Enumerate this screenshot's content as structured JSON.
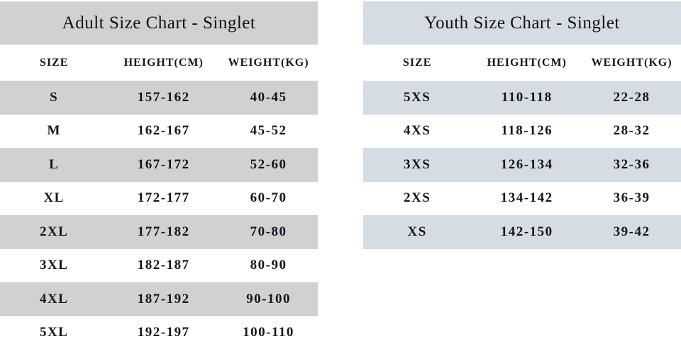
{
  "page": {
    "background_color": "#ffffff",
    "text_color": "#14141c"
  },
  "tables": [
    {
      "id": "adult",
      "title": "Adult Size Chart - Singlet",
      "accent_color": "#d1d1d1",
      "columns": [
        "SIZE",
        "HEIGHT(CM)",
        "WEIGHT(KG)"
      ],
      "rows": [
        [
          "S",
          "157-162",
          "40-45"
        ],
        [
          "M",
          "162-167",
          "45-52"
        ],
        [
          "L",
          "167-172",
          "52-60"
        ],
        [
          "XL",
          "172-177",
          "60-70"
        ],
        [
          "2XL",
          "177-182",
          "70-80"
        ],
        [
          "3XL",
          "182-187",
          "80-90"
        ],
        [
          "4XL",
          "187-192",
          "90-100"
        ],
        [
          "5XL",
          "192-197",
          "100-110"
        ]
      ]
    },
    {
      "id": "youth",
      "title": "Youth Size Chart - Singlet",
      "accent_color": "#d6dce3",
      "columns": [
        "SIZE",
        "HEIGHT(CM)",
        "WEIGHT(KG)"
      ],
      "rows": [
        [
          "5XS",
          "110-118",
          "22-28"
        ],
        [
          "4XS",
          "118-126",
          "28-32"
        ],
        [
          "3XS",
          "126-134",
          "32-36"
        ],
        [
          "2XS",
          "134-142",
          "36-39"
        ],
        [
          "XS",
          "142-150",
          "39-42"
        ]
      ]
    }
  ]
}
